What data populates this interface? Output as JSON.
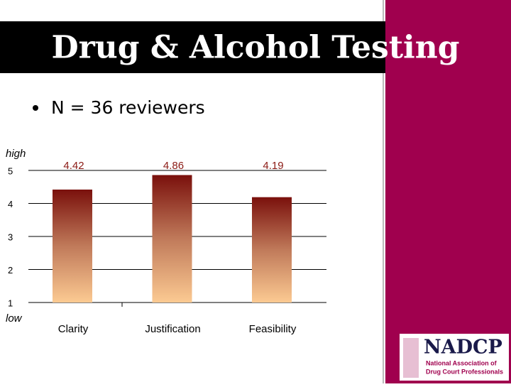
{
  "header": {
    "title": "Drug & Alcohol Testing"
  },
  "bullet": "N = 36 reviewers",
  "chart_data": {
    "type": "bar",
    "categories": [
      "Clarity",
      "Justification",
      "Feasibility"
    ],
    "values": [
      4.42,
      4.86,
      4.19
    ],
    "color": "#8b1a14",
    "ylim": [
      1,
      5
    ],
    "yticks": [
      1,
      2,
      3,
      4,
      5
    ],
    "grid": true,
    "annotations": [
      "high",
      "low"
    ]
  },
  "logo": {
    "name": "NADCP",
    "line1": "National Association of",
    "line2": "Drug Court Professionals"
  }
}
